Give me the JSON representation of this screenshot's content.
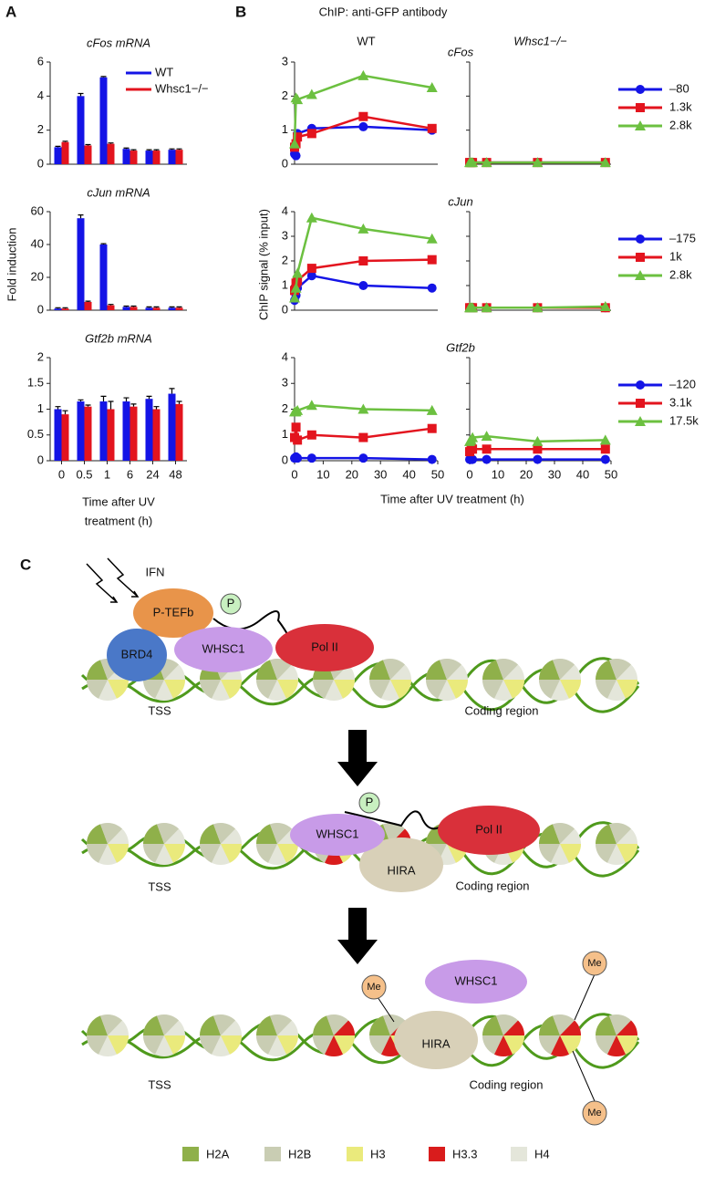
{
  "panel_labels": [
    "A",
    "B",
    "C"
  ],
  "panel_a": {
    "ylabel": "Fold induction",
    "xlabel_lines": [
      "Time after UV",
      "treatment (h)"
    ]
  },
  "panel_b": {
    "title": "ChIP: anti-GFP antibody",
    "ylabel": "ChIP signal (% input)",
    "xlabel": "Time after UV treatment (h)"
  },
  "chart_data": [
    {
      "type": "bar",
      "title": "cFos mRNA",
      "ylim": [
        0,
        6
      ],
      "yticks": [
        0,
        2,
        4,
        6
      ],
      "series": [
        {
          "name": "WT",
          "color": "#1414e6",
          "values": [
            1.0,
            4.0,
            5.1,
            0.9,
            0.8,
            0.85
          ],
          "errors": [
            0.05,
            0.15,
            0.05,
            0.05,
            0.05,
            0.05
          ]
        },
        {
          "name": "Whsc1−/−",
          "color": "#e3141e",
          "values": [
            1.3,
            1.1,
            1.2,
            0.8,
            0.8,
            0.85
          ],
          "errors": [
            0.05,
            0.05,
            0.05,
            0.05,
            0.05,
            0.05
          ]
        }
      ]
    },
    {
      "type": "bar",
      "title": "cJun mRNA",
      "ylim": [
        0,
        60
      ],
      "yticks": [
        0,
        20,
        40,
        60
      ],
      "series": [
        {
          "color": "#1414e6",
          "values": [
            1,
            56,
            40,
            2,
            1.5,
            1.5
          ],
          "errors": [
            0.5,
            2,
            0.5,
            0.5,
            0.5,
            0.5
          ]
        },
        {
          "color": "#e3141e",
          "values": [
            1,
            5,
            3,
            2,
            1.5,
            1.5
          ],
          "errors": [
            0.5,
            0.5,
            0.5,
            0.5,
            0.5,
            0.5
          ]
        }
      ]
    },
    {
      "type": "bar",
      "title": "Gtf2b mRNA",
      "ylim": [
        0,
        2
      ],
      "yticks": [
        0,
        0.5,
        1,
        1.5,
        2
      ],
      "categories": [
        "0",
        "0.5",
        "1",
        "6",
        "24",
        "48"
      ],
      "series": [
        {
          "color": "#1414e6",
          "values": [
            1.0,
            1.15,
            1.15,
            1.15,
            1.2,
            1.3
          ],
          "errors": [
            0.05,
            0.03,
            0.1,
            0.07,
            0.05,
            0.1
          ]
        },
        {
          "color": "#e3141e",
          "values": [
            0.9,
            1.05,
            1.0,
            1.05,
            1.0,
            1.1
          ],
          "errors": [
            0.07,
            0.03,
            0.15,
            0.05,
            0.05,
            0.05
          ]
        }
      ]
    },
    {
      "type": "line",
      "title": "cFos",
      "x": [
        0,
        0.5,
        1,
        6,
        24,
        48
      ],
      "xlim": [
        0,
        50
      ],
      "ylim": [
        0,
        3
      ],
      "yticks": [
        0,
        1,
        2,
        3
      ],
      "legend": [
        {
          "name": "–80",
          "color": "#1414e6",
          "marker": "circle"
        },
        {
          "name": "1.3k",
          "color": "#e3141e",
          "marker": "square"
        },
        {
          "name": "2.8k",
          "color": "#6cc040",
          "marker": "triangle"
        }
      ],
      "panels": [
        {
          "title": "WT",
          "series": [
            {
              "values": [
                0.3,
                0.25,
                0.9,
                1.05,
                1.1,
                1.0
              ]
            },
            {
              "values": [
                0.5,
                0.6,
                0.8,
                0.9,
                1.4,
                1.05
              ]
            },
            {
              "values": [
                0.6,
                1.95,
                1.9,
                2.05,
                2.6,
                2.25
              ]
            }
          ]
        },
        {
          "title": "Whsc1−/−",
          "series": [
            {
              "values": [
                0.05,
                0.05,
                0.05,
                0.05,
                0.05,
                0.05
              ]
            },
            {
              "values": [
                0.05,
                0.05,
                0.05,
                0.05,
                0.05,
                0.05
              ]
            },
            {
              "values": [
                0.05,
                0.05,
                0.05,
                0.05,
                0.05,
                0.05
              ]
            }
          ]
        }
      ]
    },
    {
      "type": "line",
      "title": "cJun",
      "x": [
        0,
        0.5,
        1,
        6,
        24,
        48
      ],
      "xlim": [
        0,
        50
      ],
      "ylim": [
        0,
        4
      ],
      "yticks": [
        0,
        1,
        2,
        3,
        4
      ],
      "legend": [
        {
          "name": "–175",
          "color": "#1414e6",
          "marker": "circle"
        },
        {
          "name": "1k",
          "color": "#e3141e",
          "marker": "square"
        },
        {
          "name": "2.8k",
          "color": "#6cc040",
          "marker": "triangle"
        }
      ],
      "panels": [
        {
          "series": [
            {
              "values": [
                0.4,
                0.6,
                0.9,
                1.4,
                1.0,
                0.9
              ]
            },
            {
              "values": [
                0.8,
                1.1,
                1.2,
                1.7,
                2.0,
                2.05
              ]
            },
            {
              "values": [
                0.5,
                0.9,
                1.5,
                3.75,
                3.3,
                2.9
              ]
            }
          ]
        },
        {
          "series": [
            {
              "values": [
                0.1,
                0.1,
                0.1,
                0.1,
                0.1,
                0.1
              ]
            },
            {
              "values": [
                0.1,
                0.1,
                0.1,
                0.1,
                0.1,
                0.1
              ]
            },
            {
              "values": [
                0.1,
                0.1,
                0.1,
                0.1,
                0.1,
                0.15
              ]
            }
          ]
        }
      ]
    },
    {
      "type": "line",
      "title": "Gtf2b",
      "x": [
        0,
        0.5,
        1,
        6,
        24,
        48
      ],
      "xlim": [
        0,
        50
      ],
      "ylim": [
        0,
        4
      ],
      "yticks": [
        0,
        1,
        2,
        3,
        4
      ],
      "xticks": [
        0,
        10,
        20,
        30,
        40,
        50
      ],
      "legend": [
        {
          "name": "–120",
          "color": "#1414e6",
          "marker": "circle"
        },
        {
          "name": "3.1k",
          "color": "#e3141e",
          "marker": "square"
        },
        {
          "name": "17.5k",
          "color": "#6cc040",
          "marker": "triangle"
        }
      ],
      "panels": [
        {
          "series": [
            {
              "values": [
                0.1,
                0.15,
                0.1,
                0.1,
                0.1,
                0.05
              ]
            },
            {
              "values": [
                0.9,
                1.3,
                0.8,
                1.0,
                0.9,
                1.25
              ]
            },
            {
              "values": [
                1.9,
                1.9,
                1.95,
                2.15,
                2.0,
                1.95
              ]
            }
          ]
        },
        {
          "series": [
            {
              "values": [
                0.05,
                0.05,
                0.05,
                0.05,
                0.05,
                0.05
              ]
            },
            {
              "values": [
                0.35,
                0.45,
                0.45,
                0.45,
                0.45,
                0.45
              ]
            },
            {
              "values": [
                0.75,
                0.8,
                0.9,
                0.95,
                0.75,
                0.8
              ]
            }
          ]
        }
      ]
    }
  ],
  "diagram": {
    "stage1": {
      "signal": "IFN",
      "ptefb": "P-TEFb",
      "phospho": "P",
      "brd4": "BRD4",
      "whsc1": "WHSC1",
      "pol2": "Pol II",
      "tss": "TSS",
      "coding": "Coding region"
    },
    "stage2": {
      "phospho": "P",
      "whsc1": "WHSC1",
      "pol2": "Pol II",
      "hira": "HIRA",
      "tss": "TSS",
      "coding": "Coding region"
    },
    "stage3": {
      "whsc1": "WHSC1",
      "hira": "HIRA",
      "methyl": [
        "Me",
        "Me",
        "Me"
      ],
      "tss": "TSS",
      "coding": "Coding region"
    },
    "legend": [
      {
        "name": "H2A",
        "color": "#8fb04a"
      },
      {
        "name": "H2B",
        "color": "#c9cdb3"
      },
      {
        "name": "H3",
        "color": "#eaea7c"
      },
      {
        "name": "H3.3",
        "color": "#d91c1c"
      },
      {
        "name": "H4",
        "color": "#e4e6da"
      }
    ]
  }
}
